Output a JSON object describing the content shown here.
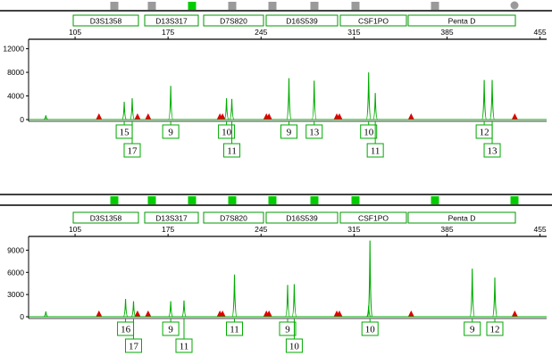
{
  "chart_data": [
    {
      "type": "line",
      "title": "",
      "xlabel": "",
      "ylabel": "",
      "xlim": [
        70,
        460
      ],
      "ylim": [
        0,
        13000
      ],
      "x_ticks": [
        "105",
        "175",
        "245",
        "315",
        "385",
        "455"
      ],
      "y_ticks": [
        "0",
        "4000",
        "8000",
        "12000"
      ],
      "series_color": "#00aa00",
      "size_standard_color": "#dd0000",
      "loci": [
        "D3S1358",
        "D13S317",
        "D7S820",
        "D16S539",
        "CSF1PO",
        "Penta D"
      ],
      "bins_strip": [
        "gray",
        "gray",
        "green",
        "gray",
        "gray",
        "gray",
        "gray",
        "gray",
        "gray-dot"
      ],
      "peaks": [
        {
          "x": 83,
          "y": 700
        },
        {
          "x": 142,
          "y": 3000
        },
        {
          "x": 148,
          "y": 3600
        },
        {
          "x": 177,
          "y": 5700
        },
        {
          "x": 219,
          "y": 3600
        },
        {
          "x": 223,
          "y": 3500
        },
        {
          "x": 266,
          "y": 7000
        },
        {
          "x": 285,
          "y": 6600
        },
        {
          "x": 326,
          "y": 8000
        },
        {
          "x": 331,
          "y": 4500
        },
        {
          "x": 413,
          "y": 6700
        },
        {
          "x": 419,
          "y": 6700
        }
      ],
      "standard_peaks": [
        123,
        152,
        160,
        214,
        216,
        249,
        251,
        302,
        304,
        358,
        436
      ],
      "alleles": [
        {
          "label": "15",
          "x": 142,
          "row": 1
        },
        {
          "label": "17",
          "x": 148,
          "row": 2
        },
        {
          "label": "9",
          "x": 177,
          "row": 1
        },
        {
          "label": "10",
          "x": 219,
          "row": 1
        },
        {
          "label": "11",
          "x": 223,
          "row": 2
        },
        {
          "label": "9",
          "x": 266,
          "row": 1
        },
        {
          "label": "13",
          "x": 285,
          "row": 1
        },
        {
          "label": "10",
          "x": 326,
          "row": 1
        },
        {
          "label": "11",
          "x": 331,
          "row": 2
        },
        {
          "label": "12",
          "x": 413,
          "row": 1
        },
        {
          "label": "13",
          "x": 419,
          "row": 2
        }
      ]
    },
    {
      "type": "line",
      "title": "",
      "xlabel": "",
      "ylabel": "",
      "xlim": [
        70,
        460
      ],
      "ylim": [
        0,
        10500
      ],
      "x_ticks": [
        "105",
        "175",
        "245",
        "315",
        "385",
        "455"
      ],
      "y_ticks": [
        "0",
        "3000",
        "6000",
        "9000"
      ],
      "series_color": "#00aa00",
      "size_standard_color": "#dd0000",
      "loci": [
        "D3S1358",
        "D13S317",
        "D7S820",
        "D16S539",
        "CSF1PO",
        "Penta D"
      ],
      "bins_strip": [
        "green",
        "green",
        "green",
        "green",
        "green",
        "green",
        "green",
        "green",
        "green"
      ],
      "peaks": [
        {
          "x": 83,
          "y": 700
        },
        {
          "x": 143,
          "y": 2400
        },
        {
          "x": 149,
          "y": 2100
        },
        {
          "x": 177,
          "y": 2100
        },
        {
          "x": 187,
          "y": 2200
        },
        {
          "x": 225,
          "y": 5700
        },
        {
          "x": 265,
          "y": 4300
        },
        {
          "x": 270,
          "y": 4400
        },
        {
          "x": 327,
          "y": 10300
        },
        {
          "x": 326,
          "y": 1500
        },
        {
          "x": 404,
          "y": 6500
        },
        {
          "x": 421,
          "y": 5300
        }
      ],
      "standard_peaks": [
        123,
        152,
        160,
        214,
        216,
        249,
        251,
        302,
        304,
        358,
        436
      ],
      "alleles": [
        {
          "label": "16",
          "x": 143,
          "row": 1
        },
        {
          "label": "17",
          "x": 149,
          "row": 2
        },
        {
          "label": "9",
          "x": 177,
          "row": 1
        },
        {
          "label": "11",
          "x": 187,
          "row": 2
        },
        {
          "label": "11",
          "x": 225,
          "row": 1
        },
        {
          "label": "9",
          "x": 265,
          "row": 1
        },
        {
          "label": "10",
          "x": 270,
          "row": 2
        },
        {
          "label": "10",
          "x": 327,
          "row": 1
        },
        {
          "label": "9",
          "x": 404,
          "row": 1
        },
        {
          "label": "12",
          "x": 421,
          "row": 1
        }
      ]
    }
  ]
}
